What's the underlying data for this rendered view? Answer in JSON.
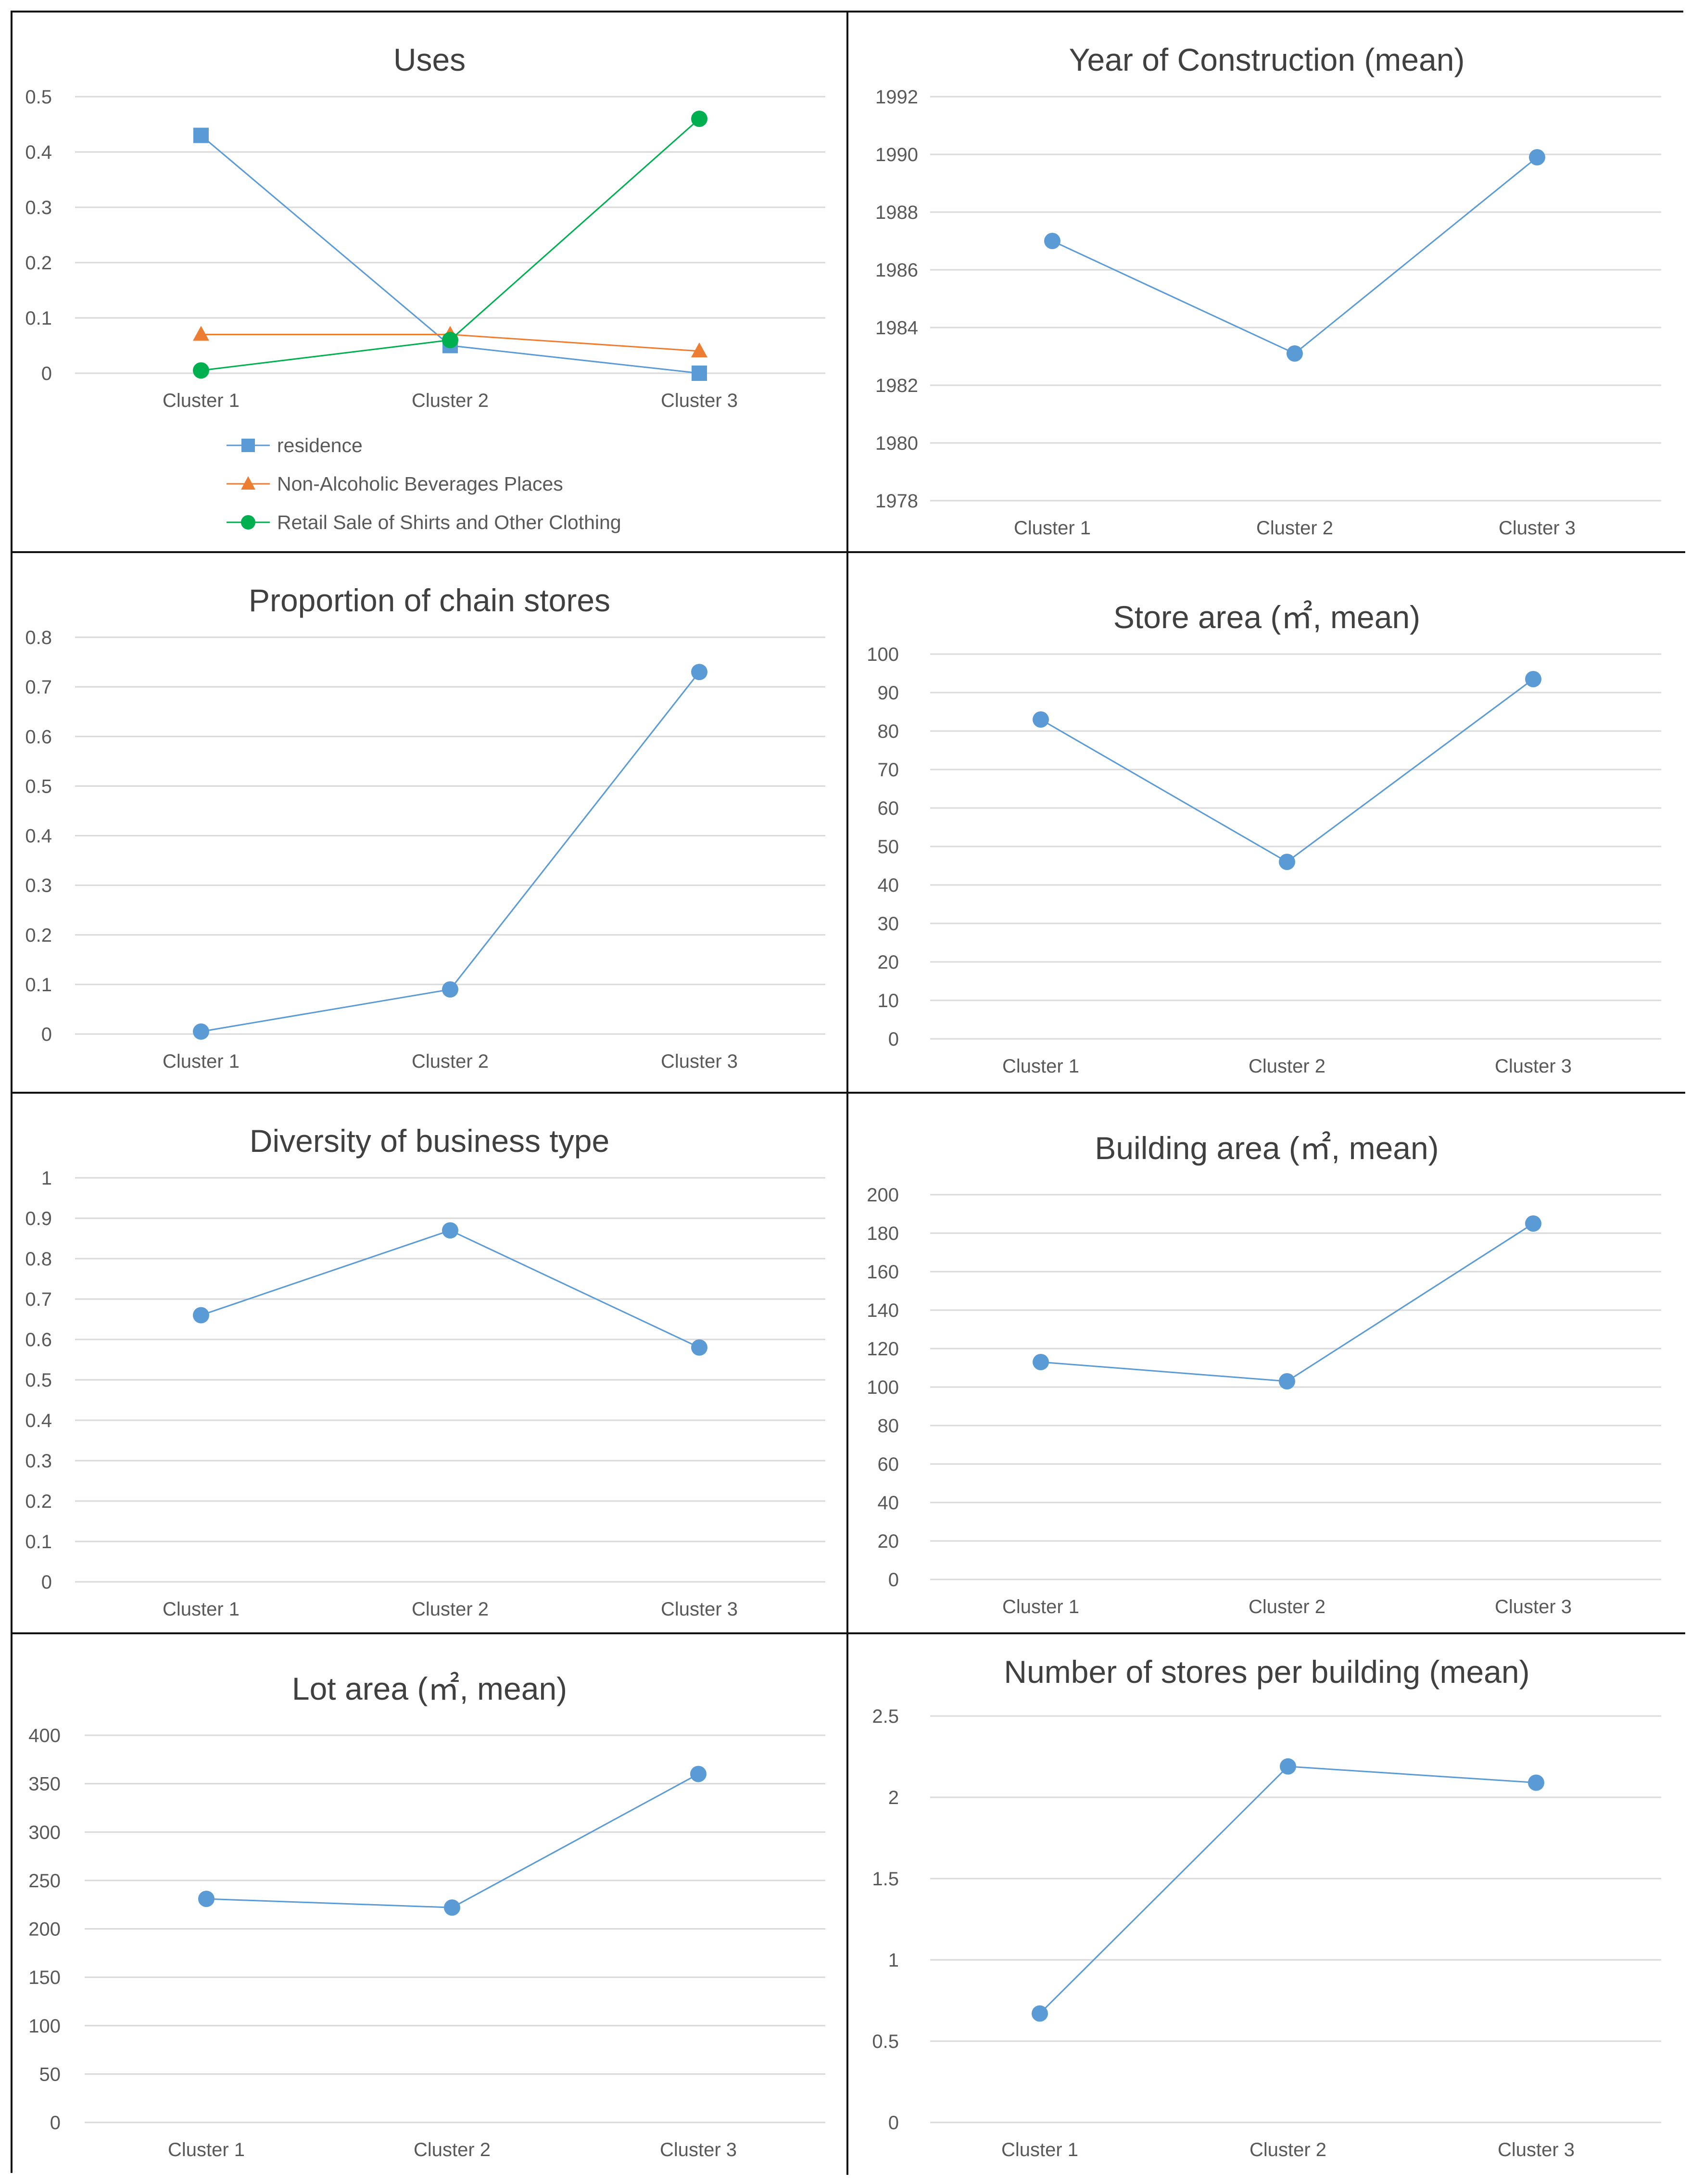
{
  "chart_data": [
    {
      "type": "line",
      "title": "Uses",
      "categories": [
        "Cluster 1",
        "Cluster 2",
        "Cluster 3"
      ],
      "ylim": [
        0,
        0.5
      ],
      "yticks": [
        "0",
        "0.1",
        "0.2",
        "0.3",
        "0.4",
        "0.5"
      ],
      "grid": true,
      "legend": "bottom",
      "series": [
        {
          "name": "residence",
          "values": [
            0.43,
            0.05,
            0.0
          ],
          "color": "#5b9bd5",
          "marker": "square"
        },
        {
          "name": "Non-Alcoholic Beverages Places",
          "values": [
            0.07,
            0.07,
            0.04
          ],
          "color": "#ed7d31",
          "marker": "triangle"
        },
        {
          "name": "Retail Sale of Shirts and Other Clothing",
          "values": [
            0.005,
            0.06,
            0.46
          ],
          "color": "#00b050",
          "marker": "circle"
        }
      ]
    },
    {
      "type": "line",
      "title": "Year of Construction (mean)",
      "categories": [
        "Cluster 1",
        "Cluster 2",
        "Cluster 3"
      ],
      "ylim": [
        1978,
        1992
      ],
      "yticks": [
        "1978",
        "1980",
        "1982",
        "1984",
        "1986",
        "1988",
        "1990",
        "1992"
      ],
      "grid": true,
      "series": [
        {
          "values": [
            1987,
            1983.1,
            1989.9
          ],
          "color": "#5b9bd5",
          "marker": "circle"
        }
      ]
    },
    {
      "type": "line",
      "title": "Proportion of chain stores",
      "categories": [
        "Cluster 1",
        "Cluster 2",
        "Cluster 3"
      ],
      "ylim": [
        0,
        0.8
      ],
      "yticks": [
        "0",
        "0.1",
        "0.2",
        "0.3",
        "0.4",
        "0.5",
        "0.6",
        "0.7",
        "0.8"
      ],
      "grid": true,
      "series": [
        {
          "values": [
            0.005,
            0.09,
            0.73
          ],
          "color": "#5b9bd5",
          "marker": "circle"
        }
      ]
    },
    {
      "type": "line",
      "title": "Store area (㎡, mean)",
      "categories": [
        "Cluster 1",
        "Cluster 2",
        "Cluster 3"
      ],
      "ylim": [
        0,
        100
      ],
      "yticks": [
        "0",
        "10",
        "20",
        "30",
        "40",
        "50",
        "60",
        "70",
        "80",
        "90",
        "100"
      ],
      "grid": true,
      "series": [
        {
          "values": [
            83,
            46,
            93.5
          ],
          "color": "#5b9bd5",
          "marker": "circle"
        }
      ]
    },
    {
      "type": "line",
      "title": "Diversity of business type",
      "categories": [
        "Cluster 1",
        "Cluster 2",
        "Cluster 3"
      ],
      "ylim": [
        0,
        1
      ],
      "yticks": [
        "0",
        "0.1",
        "0.2",
        "0.3",
        "0.4",
        "0.5",
        "0.6",
        "0.7",
        "0.8",
        "0.9",
        "1"
      ],
      "grid": true,
      "series": [
        {
          "values": [
            0.66,
            0.87,
            0.58
          ],
          "color": "#5b9bd5",
          "marker": "circle"
        }
      ]
    },
    {
      "type": "line",
      "title": "Building area (㎡, mean)",
      "categories": [
        "Cluster 1",
        "Cluster 2",
        "Cluster 3"
      ],
      "ylim": [
        0,
        200
      ],
      "yticks": [
        "0",
        "20",
        "40",
        "60",
        "80",
        "100",
        "120",
        "140",
        "160",
        "180",
        "200"
      ],
      "grid": true,
      "series": [
        {
          "values": [
            113,
            103,
            185
          ],
          "color": "#5b9bd5",
          "marker": "circle"
        }
      ]
    },
    {
      "type": "line",
      "title": "Lot area (㎡, mean)",
      "categories": [
        "Cluster 1",
        "Cluster 2",
        "Cluster 3"
      ],
      "ylim": [
        0,
        400
      ],
      "yticks": [
        "0",
        "50",
        "100",
        "150",
        "200",
        "250",
        "300",
        "350",
        "400"
      ],
      "grid": true,
      "series": [
        {
          "values": [
            231,
            222,
            360
          ],
          "color": "#5b9bd5",
          "marker": "circle"
        }
      ]
    },
    {
      "type": "line",
      "title": "Number of stores per building (mean)",
      "categories": [
        "Cluster 1",
        "Cluster 2",
        "Cluster 3"
      ],
      "ylim": [
        0,
        2.5
      ],
      "yticks": [
        "0",
        "0.5",
        "1",
        "1.5",
        "2",
        "2.5"
      ],
      "grid": true,
      "series": [
        {
          "values": [
            0.67,
            2.19,
            2.09
          ],
          "color": "#5b9bd5",
          "marker": "circle"
        }
      ]
    }
  ]
}
